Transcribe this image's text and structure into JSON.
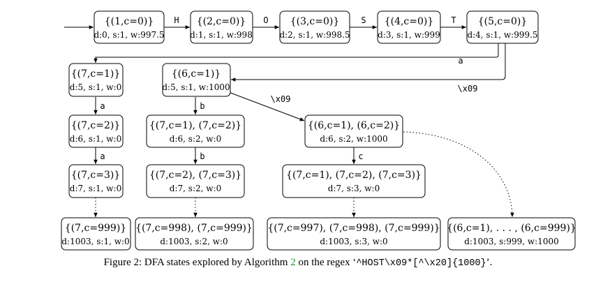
{
  "diagram": {
    "title": "DFA states explored by Algorithm 2",
    "start_edge": "from start to n1",
    "nodes": [
      {
        "id": "n1",
        "label": "{(1,c=0)}",
        "meta": "d:0, s:1, w:997.5"
      },
      {
        "id": "n2",
        "label": "{(2,c=0)}",
        "meta": "d:1, s:1, w:998"
      },
      {
        "id": "n3",
        "label": "{(3,c=0)}",
        "meta": "d:2, s:1, w:998.5"
      },
      {
        "id": "n4",
        "label": "{(4,c=0)}",
        "meta": "d:3, s:1, w:999"
      },
      {
        "id": "n5",
        "label": "{(5,c=0)}",
        "meta": "d:4, s:1, w:999.5"
      },
      {
        "id": "n6",
        "label": "{(7,c=1)}",
        "meta": "d:5, s:1, w:0"
      },
      {
        "id": "n7",
        "label": "{(6,c=1)}",
        "meta": "d:5, s:1, w:1000"
      },
      {
        "id": "n8",
        "label": "{(7,c=2)}",
        "meta": "d:6, s:1, w:0"
      },
      {
        "id": "n9",
        "label": "{(7,c=1), (7,c=2)}",
        "meta": "d:6, s:2, w:0"
      },
      {
        "id": "n10",
        "label": "{(6,c=1), (6,c=2)}",
        "meta": "d:6, s:2, w:1000"
      },
      {
        "id": "n11",
        "label": "{(7,c=3)}",
        "meta": "d:7, s:1, w:0"
      },
      {
        "id": "n12",
        "label": "{(7,c=2), (7,c=3)}",
        "meta": "d:7, s:2, w:0"
      },
      {
        "id": "n13",
        "label": "{(7,c=1), (7,c=2), (7,c=3)}",
        "meta": "d:7, s:3, w:0"
      },
      {
        "id": "n14",
        "label": "{(7,c=999)}",
        "meta": "d:1003, s:1, w:0"
      },
      {
        "id": "n15",
        "label": "{(7,c=998), (7,c=999)}",
        "meta": "d:1003, s:2, w:0"
      },
      {
        "id": "n16",
        "label": "{(7,c=997), (7,c=998), (7,c=999)}",
        "meta": "d:1003, s:3, w:0"
      },
      {
        "id": "n17",
        "label": "{(6,c=1), . . . , (6,c=999)}",
        "meta": "d:1003, s:999, w:1000"
      }
    ],
    "edges": [
      {
        "from": "n1",
        "to": "n2",
        "label": "H"
      },
      {
        "from": "n2",
        "to": "n3",
        "label": "O"
      },
      {
        "from": "n3",
        "to": "n4",
        "label": "S"
      },
      {
        "from": "n4",
        "to": "n5",
        "label": "T"
      },
      {
        "from": "n5",
        "to": "n6",
        "label": "a"
      },
      {
        "from": "n5",
        "to": "n7",
        "label": "\\x09"
      },
      {
        "from": "n6",
        "to": "n8",
        "label": "a"
      },
      {
        "from": "n8",
        "to": "n11",
        "label": "a"
      },
      {
        "from": "n7",
        "to": "n9",
        "label": "b"
      },
      {
        "from": "n9",
        "to": "n12",
        "label": "b"
      },
      {
        "from": "n7",
        "to": "n10",
        "label": "\\x09"
      },
      {
        "from": "n10",
        "to": "n13",
        "label": "c"
      },
      {
        "from": "n11",
        "to": "n14",
        "label": "",
        "style": "dotted"
      },
      {
        "from": "n12",
        "to": "n15",
        "label": "",
        "style": "dotted"
      },
      {
        "from": "n13",
        "to": "n16",
        "label": "",
        "style": "dotted"
      },
      {
        "from": "n10",
        "to": "n17",
        "label": "",
        "style": "dotted"
      }
    ]
  },
  "caption": {
    "prefix": "Figure 2: DFA states explored by Algorithm ",
    "ref": "2",
    "middle": " on the regex ‘",
    "regex": "^HOST\\x09*[^\\x20]{1000}",
    "suffix": "’."
  }
}
